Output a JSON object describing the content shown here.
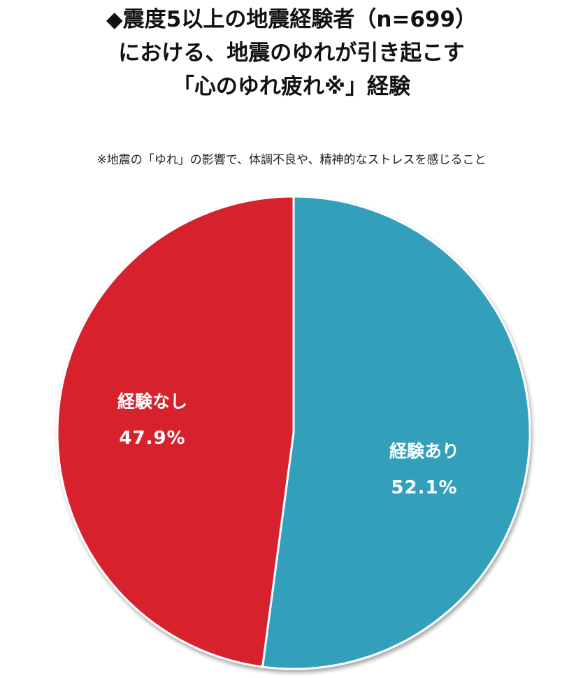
{
  "title": {
    "line1": "◆震度5以上の地震経験者（n=699）",
    "line2": "における、地震のゆれが引き起こす",
    "line3": "「心のゆれ疲れ※」経験"
  },
  "note": "※地震の「ゆれ」の影響で、体調不良や、精神的なストレスを感じること",
  "colors": {
    "experienced": "#31A0BA",
    "not_experienced": "#D7202F",
    "separator": "#ffffff"
  },
  "labels": {
    "experienced": {
      "name": "経験あり",
      "pct": "52.1%"
    },
    "not_experienced": {
      "name": "経験なし",
      "pct": "47.9%"
    }
  },
  "chart_data": {
    "type": "pie",
    "title": "◆震度5以上の地震経験者（n=699）における、地震のゆれが引き起こす「心のゆれ疲れ※」経験",
    "subtitle": "※地震の「ゆれ」の影響で、体調不良や、精神的なストレスを感じること",
    "n": 699,
    "categories": [
      "経験あり",
      "経験なし"
    ],
    "values": [
      52.1,
      47.9
    ],
    "unit": "%",
    "colors": [
      "#31A0BA",
      "#D7202F"
    ],
    "start_angle": "12 o'clock, clockwise",
    "legend": "none (direct labels inside slices)"
  }
}
